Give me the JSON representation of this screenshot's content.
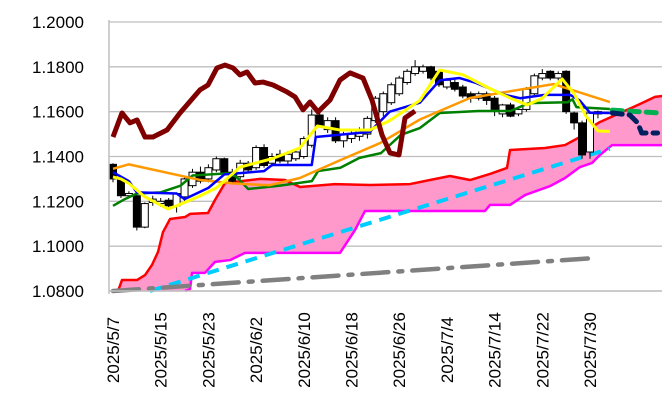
{
  "chart_data": {
    "type": "candlestick-ichimoku",
    "title": "",
    "xlabel": "",
    "ylabel": "",
    "ylim": [
      1.08,
      1.2
    ],
    "grid": true,
    "y_ticks": [
      "1.2000",
      "1.1800",
      "1.1600",
      "1.1400",
      "1.1200",
      "1.1000",
      "1.0800"
    ],
    "y_tick_values": [
      1.2,
      1.18,
      1.16,
      1.14,
      1.12,
      1.1,
      1.08
    ],
    "x_ticks": [
      {
        "i": 0,
        "label": "2025/5/7"
      },
      {
        "i": 6,
        "label": "2025/5/15"
      },
      {
        "i": 12,
        "label": "2025/5/23"
      },
      {
        "i": 18,
        "label": "2025/6/2"
      },
      {
        "i": 24,
        "label": "2025/6/10"
      },
      {
        "i": 30,
        "label": "2025/6/18"
      },
      {
        "i": 36,
        "label": "2025/6/26"
      },
      {
        "i": 42,
        "label": "2025/7/4"
      },
      {
        "i": 48,
        "label": "2025/7/14"
      },
      {
        "i": 54,
        "label": "2025/7/22"
      },
      {
        "i": 60,
        "label": "2025/7/30"
      }
    ],
    "x_range": [
      -0.5,
      69.1
    ],
    "candles_ohlc": [
      [
        1.1365,
        1.137,
        1.1285,
        1.13
      ],
      [
        1.13,
        1.131,
        1.1215,
        1.1225
      ],
      [
        1.1225,
        1.1245,
        1.1215,
        1.1235
      ],
      [
        1.1225,
        1.1235,
        1.107,
        1.1085
      ],
      [
        1.1085,
        1.1195,
        1.108,
        1.119
      ],
      [
        1.1195,
        1.1225,
        1.118,
        1.121
      ],
      [
        1.119,
        1.1215,
        1.1175,
        1.12
      ],
      [
        1.1205,
        1.1215,
        1.1165,
        1.118
      ],
      [
        1.118,
        1.124,
        1.115,
        1.1235
      ],
      [
        1.122,
        1.131,
        1.1195,
        1.13
      ],
      [
        1.127,
        1.1345,
        1.126,
        1.133
      ],
      [
        1.133,
        1.1355,
        1.128,
        1.129
      ],
      [
        1.13,
        1.1365,
        1.1285,
        1.135
      ],
      [
        1.134,
        1.14,
        1.133,
        1.139
      ],
      [
        1.139,
        1.1395,
        1.1325,
        1.133
      ],
      [
        1.133,
        1.1345,
        1.1275,
        1.129
      ],
      [
        1.131,
        1.1385,
        1.13,
        1.137
      ],
      [
        1.137,
        1.138,
        1.133,
        1.134
      ],
      [
        1.135,
        1.145,
        1.134,
        1.144
      ],
      [
        1.144,
        1.1455,
        1.135,
        1.136
      ],
      [
        1.137,
        1.1415,
        1.1355,
        1.14
      ],
      [
        1.141,
        1.143,
        1.137,
        1.138
      ],
      [
        1.138,
        1.1425,
        1.1365,
        1.141
      ],
      [
        1.139,
        1.143,
        1.138,
        1.142
      ],
      [
        1.14,
        1.149,
        1.139,
        1.148
      ],
      [
        1.145,
        1.161,
        1.144,
        1.1585
      ],
      [
        1.1585,
        1.1605,
        1.153,
        1.154
      ],
      [
        1.152,
        1.1575,
        1.1505,
        1.156
      ],
      [
        1.156,
        1.1575,
        1.146,
        1.147
      ],
      [
        1.147,
        1.151,
        1.144,
        1.15
      ],
      [
        1.148,
        1.1515,
        1.146,
        1.15
      ],
      [
        1.149,
        1.153,
        1.147,
        1.152
      ],
      [
        1.15,
        1.158,
        1.148,
        1.157
      ],
      [
        1.156,
        1.167,
        1.155,
        1.166
      ],
      [
        1.16,
        1.169,
        1.158,
        1.168
      ],
      [
        1.164,
        1.173,
        1.163,
        1.172
      ],
      [
        1.168,
        1.176,
        1.167,
        1.175
      ],
      [
        1.173,
        1.179,
        1.172,
        1.178
      ],
      [
        1.177,
        1.183,
        1.176,
        1.18
      ],
      [
        1.178,
        1.181,
        1.177,
        1.18
      ],
      [
        1.18,
        1.1805,
        1.174,
        1.175
      ],
      [
        1.178,
        1.179,
        1.171,
        1.172
      ],
      [
        1.171,
        1.175,
        1.17,
        1.174
      ],
      [
        1.173,
        1.1745,
        1.169,
        1.17
      ],
      [
        1.171,
        1.172,
        1.166,
        1.167
      ],
      [
        1.168,
        1.169,
        1.164,
        1.166
      ],
      [
        1.166,
        1.169,
        1.165,
        1.168
      ],
      [
        1.168,
        1.169,
        1.163,
        1.165
      ],
      [
        1.166,
        1.167,
        1.158,
        1.161
      ],
      [
        1.159,
        1.1635,
        1.1575,
        1.163
      ],
      [
        1.163,
        1.164,
        1.1575,
        1.158
      ],
      [
        1.159,
        1.162,
        1.158,
        1.161
      ],
      [
        1.161,
        1.171,
        1.16,
        1.17
      ],
      [
        1.168,
        1.177,
        1.167,
        1.176
      ],
      [
        1.175,
        1.179,
        1.174,
        1.177
      ],
      [
        1.178,
        1.1785,
        1.174,
        1.175
      ],
      [
        1.175,
        1.178,
        1.174,
        1.177
      ],
      [
        1.178,
        1.1785,
        1.159,
        1.16
      ],
      [
        1.1594,
        1.16,
        1.152,
        1.155
      ],
      [
        1.155,
        1.156,
        1.139,
        1.1407
      ],
      [
        1.142,
        1.16,
        1.139,
        1.1594
      ],
      [
        1.159,
        1.1605,
        1.157,
        1.16
      ]
    ],
    "series": [
      {
        "name": "senkou-span-a",
        "color": "#ff0000",
        "style": "solid",
        "points": [
          [
            0.63,
            1.08
          ],
          [
            1.13,
            1.0849
          ],
          [
            3.02,
            1.0849
          ],
          [
            4.03,
            1.0871
          ],
          [
            4.9,
            1.0916
          ],
          [
            5.66,
            1.0974
          ],
          [
            6.29,
            1.1063
          ],
          [
            7.17,
            1.1121
          ],
          [
            9.06,
            1.113
          ],
          [
            9.69,
            1.1144
          ],
          [
            11.95,
            1.1148
          ],
          [
            12.83,
            1.1206
          ],
          [
            14.09,
            1.1282
          ],
          [
            18.49,
            1.13
          ],
          [
            21.64,
            1.1295
          ],
          [
            23.52,
            1.1264
          ],
          [
            27.92,
            1.1277
          ],
          [
            32.33,
            1.1273
          ],
          [
            37.36,
            1.1277
          ],
          [
            39.87,
            1.1295
          ],
          [
            42.39,
            1.1313
          ],
          [
            44.91,
            1.1295
          ],
          [
            47.42,
            1.1322
          ],
          [
            49.56,
            1.1349
          ],
          [
            49.94,
            1.1429
          ],
          [
            54.34,
            1.1438
          ],
          [
            56.86,
            1.1451
          ],
          [
            58.74,
            1.1487
          ],
          [
            60,
            1.1527
          ],
          [
            61.26,
            1.1554
          ],
          [
            63.77,
            1.1594
          ],
          [
            66.29,
            1.1634
          ],
          [
            68.18,
            1.1666
          ],
          [
            69.06,
            1.167
          ]
        ]
      },
      {
        "name": "senkou-span-b",
        "color": "#ff00ff",
        "style": "solid",
        "points": [
          [
            9.06,
            1.08
          ],
          [
            9.69,
            1.0809
          ],
          [
            9.94,
            1.0881
          ],
          [
            11.57,
            1.0881
          ],
          [
            12.83,
            1.093
          ],
          [
            14.72,
            1.0938
          ],
          [
            16.6,
            1.097
          ],
          [
            28.55,
            1.097
          ],
          [
            30.44,
            1.1072
          ],
          [
            31.7,
            1.1157
          ],
          [
            46.79,
            1.1157
          ],
          [
            47.42,
            1.1184
          ],
          [
            49.94,
            1.1184
          ],
          [
            51.82,
            1.1228
          ],
          [
            54.97,
            1.1268
          ],
          [
            56.86,
            1.1304
          ],
          [
            58.74,
            1.1353
          ],
          [
            60.25,
            1.1371
          ],
          [
            61.26,
            1.1407
          ],
          [
            62.77,
            1.1451
          ],
          [
            69.06,
            1.1451
          ]
        ]
      },
      {
        "name": "trend-line-support",
        "color": "#00ccff",
        "style": "dashed",
        "points": [
          [
            4.65,
            1.08
          ],
          [
            62.5,
            1.1435
          ]
        ]
      },
      {
        "name": "trend-line-long",
        "color": "#808080",
        "style": "dashdot",
        "points": [
          [
            0,
            1.0795
          ],
          [
            60.6,
            1.0947
          ]
        ]
      },
      {
        "name": "kijun-sen",
        "color": "#008000",
        "style": "solid",
        "points": [
          [
            0,
            1.118
          ],
          [
            1.5,
            1.121
          ],
          [
            3,
            1.1235
          ],
          [
            6,
            1.124
          ],
          [
            8.5,
            1.127
          ],
          [
            10,
            1.1315
          ],
          [
            14.5,
            1.1325
          ],
          [
            15.5,
            1.131
          ],
          [
            17,
            1.1255
          ],
          [
            21,
            1.127
          ],
          [
            25,
            1.129
          ],
          [
            25.8,
            1.1335
          ],
          [
            28.6,
            1.135
          ],
          [
            31,
            1.1394
          ],
          [
            33.7,
            1.1415
          ],
          [
            36.2,
            1.1496
          ],
          [
            38.6,
            1.1527
          ],
          [
            41.1,
            1.1594
          ],
          [
            46,
            1.1603
          ],
          [
            50,
            1.1603
          ],
          [
            52.3,
            1.1638
          ],
          [
            57.2,
            1.1642
          ],
          [
            57.8,
            1.1655
          ],
          [
            58.3,
            1.162
          ],
          [
            62.5,
            1.1612
          ]
        ]
      },
      {
        "name": "moving-average-long",
        "color": "#ff9900",
        "style": "solid",
        "points": [
          [
            0,
            1.1345
          ],
          [
            2,
            1.1365
          ],
          [
            11,
            1.1295
          ],
          [
            15,
            1.128
          ],
          [
            19.7,
            1.1272
          ],
          [
            23.5,
            1.1304
          ],
          [
            28.6,
            1.1384
          ],
          [
            33.6,
            1.146
          ],
          [
            38.6,
            1.1565
          ],
          [
            44.9,
            1.1661
          ],
          [
            55.4,
            1.1723
          ],
          [
            62.5,
            1.1643
          ]
        ]
      },
      {
        "name": "tenkan-sen",
        "color": "#0000ff",
        "style": "solid",
        "points": [
          [
            0,
            1.133
          ],
          [
            2,
            1.129
          ],
          [
            3,
            1.124
          ],
          [
            8,
            1.1235
          ],
          [
            9,
            1.121
          ],
          [
            12,
            1.126
          ],
          [
            14,
            1.132
          ],
          [
            19,
            1.1335
          ],
          [
            20,
            1.1362
          ],
          [
            25,
            1.1362
          ],
          [
            25.5,
            1.1487
          ],
          [
            32.3,
            1.151
          ],
          [
            34.8,
            1.16
          ],
          [
            38.6,
            1.164
          ],
          [
            41.1,
            1.174
          ],
          [
            43.6,
            1.175
          ],
          [
            45.5,
            1.173
          ],
          [
            49.3,
            1.1675
          ],
          [
            51.2,
            1.166
          ],
          [
            54.3,
            1.1675
          ],
          [
            57.5,
            1.1675
          ],
          [
            58.7,
            1.165
          ],
          [
            60,
            1.1595
          ],
          [
            62.5,
            1.1594
          ]
        ]
      },
      {
        "name": "moving-average-short",
        "color": "#ffff00",
        "style": "solid",
        "points": [
          [
            0,
            1.1309
          ],
          [
            1,
            1.13
          ],
          [
            2,
            1.128
          ],
          [
            4,
            1.122
          ],
          [
            6.9,
            1.1166
          ],
          [
            8,
            1.118
          ],
          [
            9,
            1.1195
          ],
          [
            11,
            1.1225
          ],
          [
            13,
            1.126
          ],
          [
            14,
            1.129
          ],
          [
            16,
            1.1353
          ],
          [
            20,
            1.139
          ],
          [
            23.5,
            1.1438
          ],
          [
            25.7,
            1.1536
          ],
          [
            28.6,
            1.1518
          ],
          [
            32.3,
            1.1518
          ],
          [
            34.8,
            1.156
          ],
          [
            38.6,
            1.165
          ],
          [
            41.1,
            1.1786
          ],
          [
            44,
            1.1765
          ],
          [
            47,
            1.171
          ],
          [
            50,
            1.166
          ],
          [
            52.1,
            1.163
          ],
          [
            54,
            1.166
          ],
          [
            56.5,
            1.1746
          ],
          [
            58,
            1.168
          ],
          [
            59.5,
            1.158
          ],
          [
            61,
            1.1514
          ],
          [
            62.5,
            1.1512
          ]
        ]
      },
      {
        "name": "chikou-span",
        "color": "#800000",
        "style": "solid",
        "points": [
          [
            0,
            1.1487
          ],
          [
            1.13,
            1.1594
          ],
          [
            2.14,
            1.155
          ],
          [
            3.02,
            1.1563
          ],
          [
            4.03,
            1.1487
          ],
          [
            5.03,
            1.1487
          ],
          [
            6.79,
            1.1518
          ],
          [
            8.43,
            1.1594
          ],
          [
            10.94,
            1.1697
          ],
          [
            11.95,
            1.1719
          ],
          [
            13.08,
            1.1795
          ],
          [
            14.09,
            1.1808
          ],
          [
            15.09,
            1.1795
          ],
          [
            15.97,
            1.1764
          ],
          [
            16.86,
            1.1777
          ],
          [
            17.86,
            1.1728
          ],
          [
            18.87,
            1.1732
          ],
          [
            20.13,
            1.1719
          ],
          [
            21.89,
            1.1688
          ],
          [
            22.89,
            1.1666
          ],
          [
            23.9,
            1.1608
          ],
          [
            24.78,
            1.1643
          ],
          [
            25.79,
            1.1599
          ],
          [
            27.3,
            1.1652
          ],
          [
            28.55,
            1.1741
          ],
          [
            29.81,
            1.1773
          ],
          [
            31.45,
            1.175
          ],
          [
            32.58,
            1.1652
          ],
          [
            33.84,
            1.1496
          ],
          [
            34.84,
            1.1416
          ],
          [
            35.97,
            1.1407
          ],
          [
            36.73,
            1.1572
          ],
          [
            37.99,
            1.1603
          ]
        ]
      },
      {
        "name": "forecast-kijun",
        "color": "#00b050",
        "style": "dashed-thick",
        "points": [
          [
            62.8,
            1.1607
          ],
          [
            69,
            1.1594
          ]
        ]
      },
      {
        "name": "forecast-tenkan",
        "color": "#002060",
        "style": "dashed-thick",
        "points": [
          [
            62.8,
            1.1594
          ],
          [
            65,
            1.1585
          ],
          [
            66,
            1.155
          ],
          [
            66.5,
            1.1505
          ],
          [
            68.5,
            1.1505
          ]
        ]
      }
    ],
    "cloud_fill_color": "#ff99cc",
    "legend": "none"
  }
}
